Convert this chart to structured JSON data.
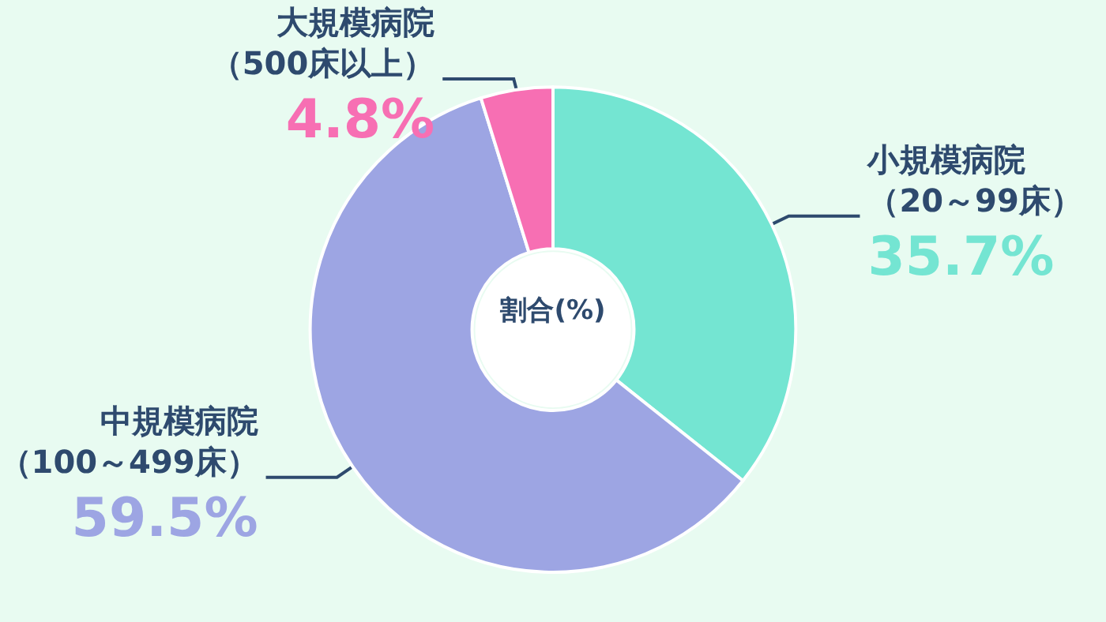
{
  "chart_data": {
    "type": "donut",
    "title": "割合(%)",
    "categories": [
      "小規模病院（20～99床）",
      "中規模病院（100～499床）",
      "大規模病院（500床以上）"
    ],
    "values": [
      35.7,
      59.5,
      4.8
    ],
    "colors": [
      "#74e5d2",
      "#9da5e3",
      "#f76fb3"
    ],
    "value_labels": [
      "35.7%",
      "59.5%",
      "4.8%"
    ],
    "legend": false
  }
}
